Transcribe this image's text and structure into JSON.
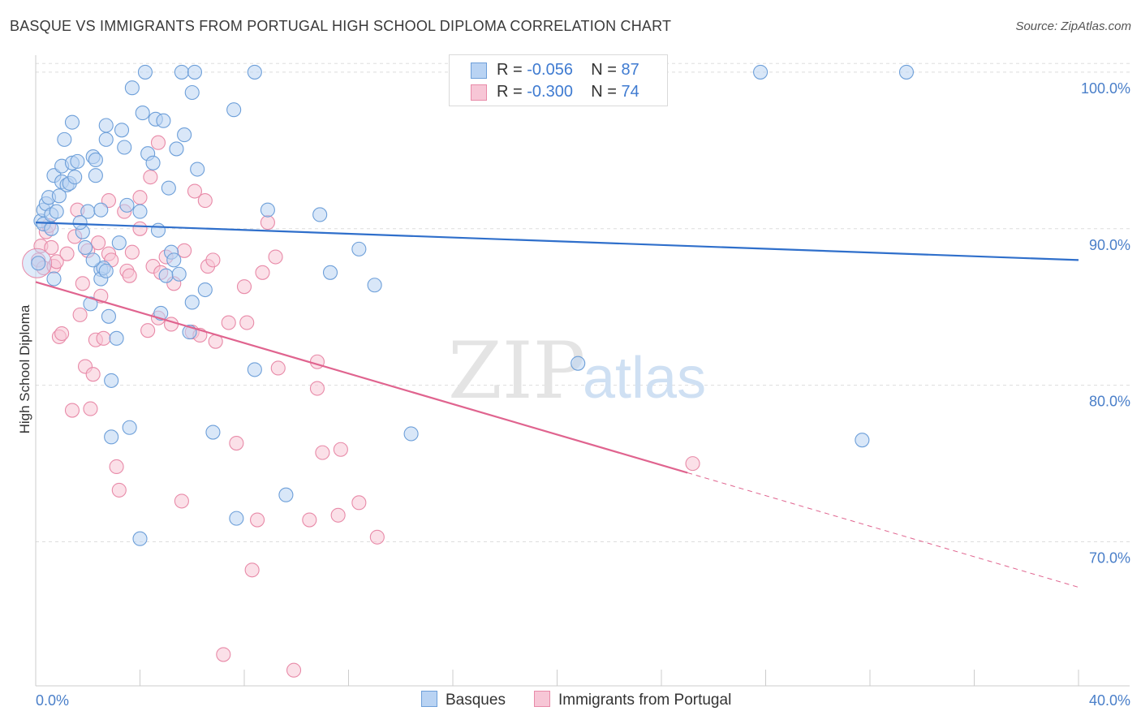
{
  "title": "BASQUE VS IMMIGRANTS FROM PORTUGAL HIGH SCHOOL DIPLOMA CORRELATION CHART",
  "source": "Source: ZipAtlas.com",
  "watermark": {
    "zip": "ZIP",
    "atlas": "atlas"
  },
  "legend": {
    "rows": [
      {
        "r_label": "R = ",
        "r_value": "-0.056",
        "n_label": "N = ",
        "n_value": "87"
      },
      {
        "r_label": "R = ",
        "r_value": "-0.300",
        "n_label": "N = ",
        "n_value": "74"
      }
    ]
  },
  "colors": {
    "blue_fill": "#b9d3f3",
    "blue_stroke": "#6d9fd9",
    "blue_line": "#2f6fcb",
    "pink_fill": "#f7c6d6",
    "pink_stroke": "#e88aa8",
    "pink_line": "#e0648f",
    "tick_text": "#4a7fc9",
    "grid": "#dddddd"
  },
  "chart_data": {
    "type": "scatter",
    "title": "BASQUE VS IMMIGRANTS FROM PORTUGAL HIGH SCHOOL DIPLOMA CORRELATION CHART",
    "xlabel": "",
    "ylabel": "High School Diploma",
    "xlim": [
      0,
      40
    ],
    "ylim": [
      60.8,
      101.5
    ],
    "x_tick_labels": [
      "0.0%",
      "40.0%"
    ],
    "y_ticks": [
      100,
      90,
      80,
      70
    ],
    "y_tick_labels": [
      "100.0%",
      "90.0%",
      "80.0%",
      "70.0%"
    ],
    "grid": true,
    "legend_position": "top-center",
    "series": [
      {
        "name": "Basques",
        "color": "#6d9fd9",
        "trend": {
          "x": [
            0,
            40
          ],
          "y": [
            90.4,
            88.0
          ],
          "dashed_from": null
        },
        "points": [
          [
            0.2,
            90.5
          ],
          [
            0.3,
            91.2
          ],
          [
            0.3,
            90.3
          ],
          [
            0.4,
            91.6
          ],
          [
            0.5,
            92.0
          ],
          [
            0.6,
            90.9
          ],
          [
            0.6,
            90.0
          ],
          [
            0.7,
            93.4
          ],
          [
            0.7,
            86.8
          ],
          [
            0.8,
            91.1
          ],
          [
            0.9,
            92.1
          ],
          [
            1.0,
            94.0
          ],
          [
            1.0,
            93.0
          ],
          [
            1.1,
            95.7
          ],
          [
            1.2,
            92.8
          ],
          [
            1.3,
            92.9
          ],
          [
            1.4,
            94.2
          ],
          [
            1.4,
            96.8
          ],
          [
            1.5,
            93.3
          ],
          [
            1.6,
            94.3
          ],
          [
            1.8,
            89.8
          ],
          [
            1.9,
            88.8
          ],
          [
            2.0,
            91.1
          ],
          [
            2.1,
            85.2
          ],
          [
            2.2,
            94.6
          ],
          [
            2.3,
            93.4
          ],
          [
            2.3,
            94.4
          ],
          [
            2.5,
            87.4
          ],
          [
            2.5,
            86.8
          ],
          [
            2.5,
            91.2
          ],
          [
            2.6,
            87.5
          ],
          [
            2.7,
            87.3
          ],
          [
            2.7,
            96.6
          ],
          [
            2.7,
            95.7
          ],
          [
            2.8,
            84.4
          ],
          [
            2.9,
            80.3
          ],
          [
            2.9,
            76.7
          ],
          [
            3.1,
            83.0
          ],
          [
            3.2,
            89.1
          ],
          [
            3.3,
            96.3
          ],
          [
            3.4,
            95.2
          ],
          [
            3.6,
            77.3
          ],
          [
            3.7,
            99.0
          ],
          [
            4.0,
            91.1
          ],
          [
            4.0,
            70.2
          ],
          [
            4.1,
            97.4
          ],
          [
            4.2,
            100.0
          ],
          [
            4.3,
            94.8
          ],
          [
            4.5,
            94.2
          ],
          [
            4.6,
            97.0
          ],
          [
            4.7,
            89.9
          ],
          [
            4.8,
            84.6
          ],
          [
            4.9,
            96.9
          ],
          [
            5.0,
            87.0
          ],
          [
            5.1,
            92.6
          ],
          [
            5.2,
            88.5
          ],
          [
            5.3,
            88.0
          ],
          [
            5.4,
            95.1
          ],
          [
            5.5,
            87.1
          ],
          [
            5.6,
            100.0
          ],
          [
            5.7,
            96.0
          ],
          [
            5.9,
            83.4
          ],
          [
            6.0,
            85.3
          ],
          [
            6.0,
            98.7
          ],
          [
            6.1,
            100.0
          ],
          [
            6.2,
            93.8
          ],
          [
            6.5,
            86.1
          ],
          [
            6.8,
            77.0
          ],
          [
            7.6,
            97.6
          ],
          [
            7.7,
            71.5
          ],
          [
            8.4,
            100.0
          ],
          [
            8.4,
            81.0
          ],
          [
            8.9,
            91.2
          ],
          [
            9.6,
            73.0
          ],
          [
            10.9,
            90.9
          ],
          [
            11.3,
            87.2
          ],
          [
            12.4,
            88.7
          ],
          [
            13.0,
            86.4
          ],
          [
            14.4,
            76.9
          ],
          [
            20.8,
            81.4
          ],
          [
            27.8,
            100.0
          ],
          [
            31.7,
            76.5
          ],
          [
            33.4,
            100.0
          ],
          [
            0.1,
            87.8
          ],
          [
            1.7,
            90.4
          ],
          [
            3.5,
            91.5
          ],
          [
            2.2,
            88.0
          ]
        ]
      },
      {
        "name": "Immigrants from Portugal",
        "color": "#e88aa8",
        "trend": {
          "x": [
            0,
            40
          ],
          "y": [
            86.6,
            67.1
          ],
          "dashed_from": 25.0
        },
        "points": [
          [
            0.1,
            88.0
          ],
          [
            0.2,
            88.9
          ],
          [
            0.3,
            87.5
          ],
          [
            0.4,
            89.8
          ],
          [
            0.5,
            90.2
          ],
          [
            0.6,
            88.8
          ],
          [
            0.7,
            87.6
          ],
          [
            0.8,
            87.9
          ],
          [
            0.9,
            83.1
          ],
          [
            1.0,
            83.3
          ],
          [
            1.2,
            88.4
          ],
          [
            1.4,
            78.4
          ],
          [
            1.5,
            89.5
          ],
          [
            1.6,
            91.2
          ],
          [
            1.7,
            84.5
          ],
          [
            1.8,
            86.5
          ],
          [
            1.9,
            81.2
          ],
          [
            2.0,
            88.6
          ],
          [
            2.1,
            78.5
          ],
          [
            2.2,
            80.7
          ],
          [
            2.3,
            82.9
          ],
          [
            2.4,
            89.1
          ],
          [
            2.5,
            85.7
          ],
          [
            2.6,
            83.0
          ],
          [
            2.8,
            91.8
          ],
          [
            2.8,
            88.4
          ],
          [
            2.9,
            88.0
          ],
          [
            3.1,
            74.8
          ],
          [
            3.2,
            73.3
          ],
          [
            3.4,
            91.1
          ],
          [
            3.5,
            87.3
          ],
          [
            3.6,
            87.0
          ],
          [
            3.7,
            88.5
          ],
          [
            4.0,
            90.0
          ],
          [
            4.0,
            92.0
          ],
          [
            4.3,
            83.5
          ],
          [
            4.4,
            93.3
          ],
          [
            4.5,
            87.6
          ],
          [
            4.7,
            84.3
          ],
          [
            4.7,
            95.5
          ],
          [
            4.8,
            87.2
          ],
          [
            5.0,
            88.2
          ],
          [
            5.2,
            83.9
          ],
          [
            5.3,
            86.5
          ],
          [
            5.6,
            72.6
          ],
          [
            5.7,
            88.6
          ],
          [
            6.0,
            83.4
          ],
          [
            6.1,
            92.4
          ],
          [
            6.3,
            83.2
          ],
          [
            6.5,
            91.8
          ],
          [
            6.6,
            87.6
          ],
          [
            6.8,
            88.0
          ],
          [
            6.9,
            82.8
          ],
          [
            7.2,
            62.8
          ],
          [
            7.4,
            84.0
          ],
          [
            7.7,
            76.3
          ],
          [
            8.0,
            86.3
          ],
          [
            8.1,
            84.0
          ],
          [
            8.3,
            68.2
          ],
          [
            8.5,
            71.4
          ],
          [
            8.7,
            87.2
          ],
          [
            8.9,
            90.4
          ],
          [
            9.2,
            88.2
          ],
          [
            9.3,
            81.1
          ],
          [
            9.9,
            61.8
          ],
          [
            10.5,
            71.4
          ],
          [
            10.8,
            81.5
          ],
          [
            10.8,
            79.8
          ],
          [
            11.0,
            75.7
          ],
          [
            11.6,
            71.7
          ],
          [
            11.7,
            75.9
          ],
          [
            12.4,
            72.5
          ],
          [
            13.1,
            70.3
          ],
          [
            25.2,
            75.0
          ]
        ]
      }
    ]
  },
  "bottom_legend": {
    "basques": "Basques",
    "portugal": "Immigrants from Portugal"
  }
}
